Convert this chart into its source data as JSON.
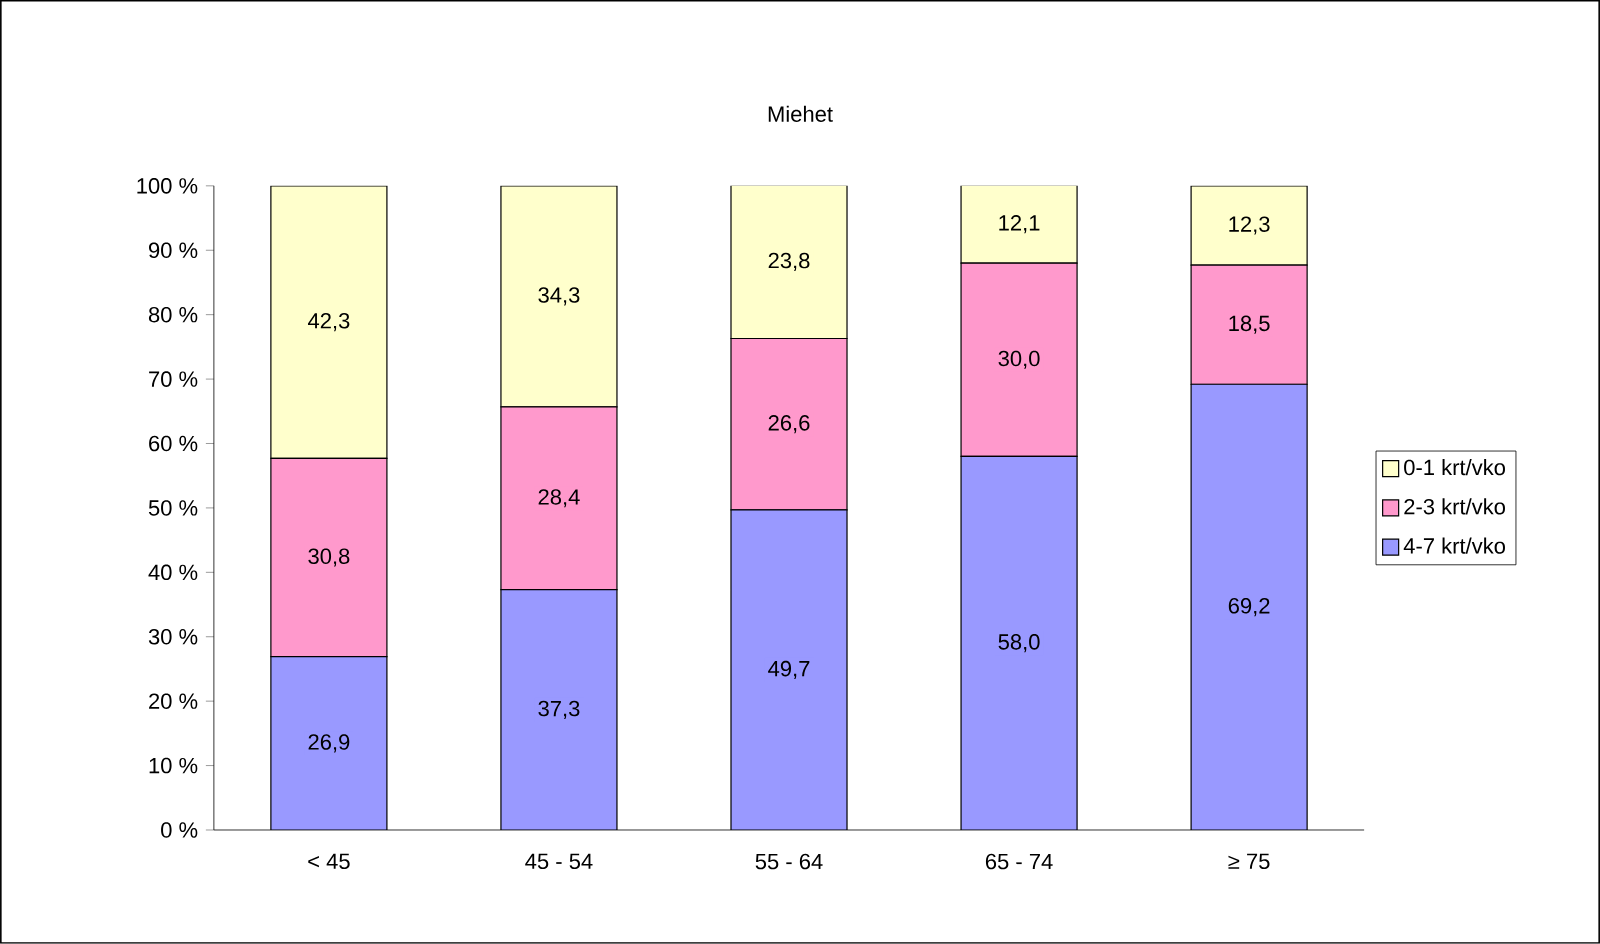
{
  "chart_data": {
    "type": "bar",
    "title": "Miehet",
    "stacked": true,
    "legend": "right",
    "categories": [
      "< 45",
      "45 - 54",
      "55 - 64",
      "65 - 74",
      "≥ 75"
    ],
    "ylim": [
      0,
      100
    ],
    "yticks": [
      {
        "value": 0,
        "label": "0 %"
      },
      {
        "value": 10,
        "label": "10 %"
      },
      {
        "value": 20,
        "label": "20 %"
      },
      {
        "value": 30,
        "label": "30 %"
      },
      {
        "value": 40,
        "label": "40 %"
      },
      {
        "value": 50,
        "label": "50 %"
      },
      {
        "value": 60,
        "label": "60 %"
      },
      {
        "value": 70,
        "label": "70 %"
      },
      {
        "value": 80,
        "label": "80 %"
      },
      {
        "value": 90,
        "label": "90 %"
      },
      {
        "value": 100,
        "label": "100 %"
      }
    ],
    "series": [
      {
        "name": "4-7 krt/vko",
        "color": "#9999ff",
        "values": [
          26.9,
          37.3,
          49.7,
          58.0,
          69.2
        ],
        "value_labels": [
          "26,9",
          "37,3",
          "49,7",
          "58,0",
          "69,2"
        ]
      },
      {
        "name": "2-3 krt/vko",
        "color": "#ff99cc",
        "values": [
          30.8,
          28.4,
          26.6,
          30.0,
          18.5
        ],
        "value_labels": [
          "30,8",
          "28,4",
          "26,6",
          "30,0",
          "18,5"
        ]
      },
      {
        "name": "0-1 krt/vko",
        "color": "#ffffcc",
        "values": [
          42.3,
          34.3,
          23.8,
          12.1,
          12.3
        ],
        "value_labels": [
          "42,3",
          "34,3",
          "23,8",
          "12,1",
          "12,3"
        ]
      }
    ]
  }
}
